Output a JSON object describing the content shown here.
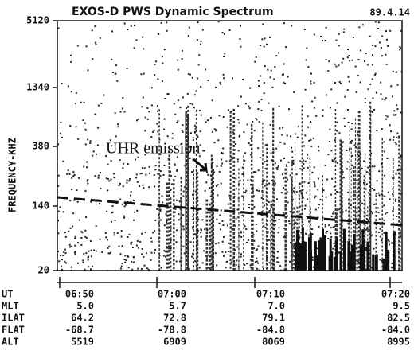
{
  "chart_data": {
    "type": "spectrogram",
    "title": "EXOS-D PWS Dynamic Spectrum",
    "date": "89.4.14",
    "ylabel": "FREQUENCY-KHZ",
    "y_tick_labels": [
      "5120",
      "1340",
      "380",
      "140",
      "20"
    ],
    "annotation": "UHR emission",
    "table": {
      "rows": [
        [
          "UT",
          "06:50",
          "07:00",
          "07:10",
          "07:20"
        ],
        [
          "MLT",
          "5.0",
          "5.7",
          "7.0",
          "9.5"
        ],
        [
          "ILAT",
          "64.2",
          "72.8",
          "79.1",
          "82.5"
        ],
        [
          "FLAT",
          "-68.7",
          "-78.8",
          "-84.8",
          "-84.0"
        ],
        [
          "ALT",
          "5519",
          "6909",
          "8069",
          "8995"
        ]
      ]
    }
  }
}
